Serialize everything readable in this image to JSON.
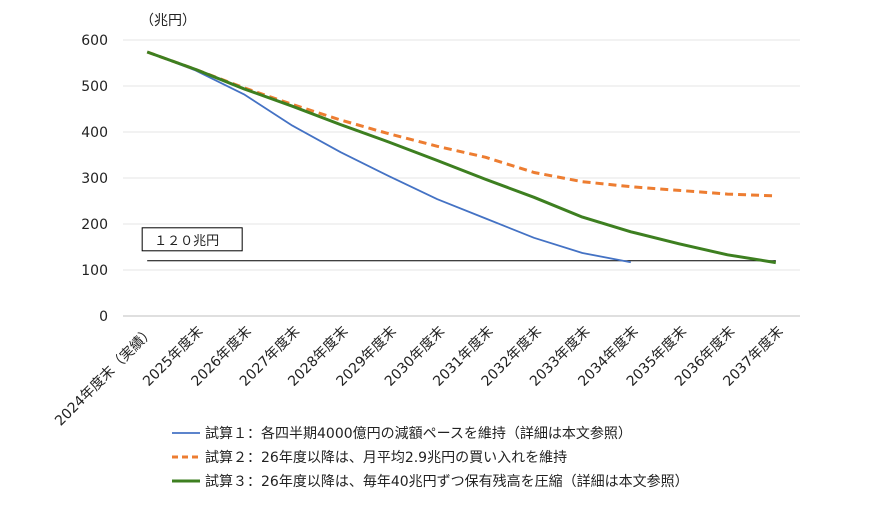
{
  "chart_data": {
    "type": "line",
    "ylabel": "（兆円）",
    "ylim": [
      0,
      600
    ],
    "yticks": [
      0,
      100,
      200,
      300,
      400,
      500,
      600
    ],
    "grid": "horizontal",
    "legend_position": "bottom",
    "categories": [
      "2024年度末（実績）",
      "2025年度末",
      "2026年度末",
      "2027年度末",
      "2028年度末",
      "2029年度末",
      "2030年度末",
      "2031年度末",
      "2032年度末",
      "2033年度末",
      "2034年度末",
      "2035年度末",
      "2036年度末",
      "2037年度末"
    ],
    "series": [
      {
        "name": "試算１：各四半期4000億円の減額ペースを維持（詳細は本文参照）",
        "color": "#4472C4",
        "dash": "solid",
        "values": [
          574,
          534,
          482,
          414,
          356,
          304,
          254,
          212,
          170,
          137,
          117,
          null,
          null,
          null
        ]
      },
      {
        "name": "試算２：26年度以降は、月平均2.9兆円の買い入れを維持",
        "color": "#ED7D31",
        "dash": "dashed",
        "values": [
          574,
          536,
          496,
          460,
          426,
          396,
          369,
          345,
          312,
          292,
          281,
          273,
          265,
          261
        ]
      },
      {
        "name": "試算３：26年度以降は、毎年40兆円ずつ保有残高を圧縮（詳細は本文参照）",
        "color": "#3D7F20",
        "dash": "solid",
        "values": [
          574,
          536,
          494,
          456,
          416,
          378,
          338,
          297,
          258,
          215,
          183,
          157,
          133,
          116
        ]
      }
    ],
    "annotations": [
      {
        "label": "１２０兆円",
        "value": 120
      }
    ]
  }
}
